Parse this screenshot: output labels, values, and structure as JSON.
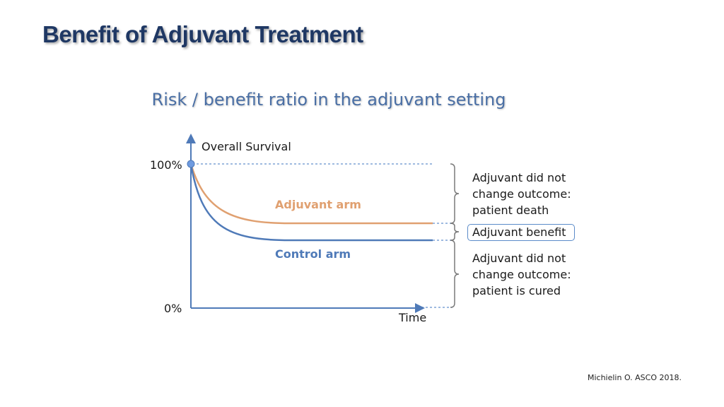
{
  "title": "Benefit of Adjuvant Treatment",
  "subtitle": "Risk / benefit ratio in the adjuvant setting",
  "diagram": {
    "y_axis_label": "Overall Survival",
    "x_axis_label": "Time",
    "y_tick_top": "100%",
    "y_tick_bottom": "0%",
    "series": {
      "adjuvant": {
        "label": "Adjuvant arm",
        "color": "#e0a070"
      },
      "control": {
        "label": "Control arm",
        "color": "#4f7ab8"
      }
    },
    "annotations": {
      "top": [
        "Adjuvant did not",
        "change outcome:",
        "patient death"
      ],
      "middle": "Adjuvant benefit",
      "bottom": [
        "Adjuvant did not",
        "change outcome:",
        "patient is cured"
      ]
    }
  },
  "citation": "Michielin O. ASCO 2018."
}
